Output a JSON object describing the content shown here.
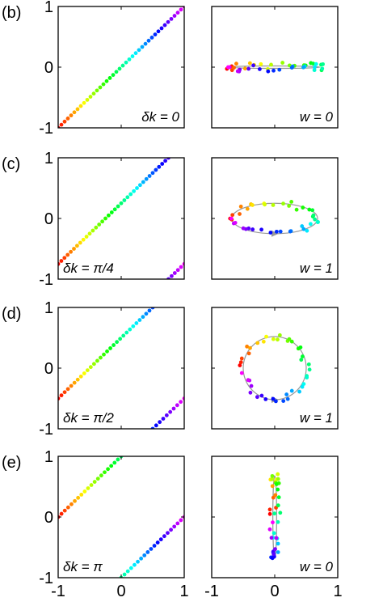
{
  "figure": {
    "rows": [
      {
        "label": "(b)"
      },
      {
        "label": "(c)"
      },
      {
        "label": "(d)"
      },
      {
        "label": "(e)"
      }
    ]
  },
  "chart_data": [
    {
      "type": "scatter",
      "panel_label": "(b)",
      "annotation": "δk = 0",
      "xlim": [
        -1,
        1
      ],
      "ylim": [
        -1,
        1
      ],
      "x_ticks": [
        "-1",
        "0",
        "1"
      ],
      "y_ticks": [
        "-1",
        "0",
        "1"
      ],
      "show_x_ticks": false,
      "show_y_ticks": true,
      "series": [
        {
          "x_start": -1,
          "y_start": -1,
          "x_end": 1,
          "y_end": 1,
          "points": 40
        }
      ]
    },
    {
      "type": "scatter",
      "panel_label": "(b)",
      "annotation": "w = 0",
      "xlim": [
        -1,
        1
      ],
      "ylim": [
        -1,
        1
      ],
      "x_ticks": [
        "-1",
        "0",
        "1"
      ],
      "y_ticks": [],
      "show_x_ticks": false,
      "show_y_ticks": false,
      "curve": {
        "kind": "ellipse",
        "cx": 0,
        "cy": 0,
        "rx": 0.72,
        "ry": 0.02
      },
      "points": 40
    },
    {
      "type": "scatter",
      "panel_label": "(c)",
      "annotation": "δk = π/4",
      "xlim": [
        -1,
        1
      ],
      "ylim": [
        -1,
        1
      ],
      "x_ticks": [
        "-1",
        "0",
        "1"
      ],
      "y_ticks": [
        "-1",
        "0",
        "1"
      ],
      "show_x_ticks": false,
      "show_y_ticks": true,
      "series": [
        {
          "x_start": -1,
          "y_start": -0.75,
          "x_end": 0.75,
          "y_end": 1,
          "points": 36
        },
        {
          "x_start": 0.75,
          "y_start": -1,
          "x_end": 1,
          "y_end": -0.75,
          "points": 6
        }
      ]
    },
    {
      "type": "scatter",
      "panel_label": "(c)",
      "annotation": "w = 1",
      "xlim": [
        -1,
        1
      ],
      "ylim": [
        -1,
        1
      ],
      "x_ticks": [
        "-1",
        "0",
        "1"
      ],
      "y_ticks": [],
      "show_x_ticks": false,
      "show_y_ticks": false,
      "curve": {
        "kind": "ellipse",
        "cx": 0,
        "cy": 0,
        "rx": 0.68,
        "ry": 0.25
      },
      "points": 40
    },
    {
      "type": "scatter",
      "panel_label": "(d)",
      "annotation": "δk = π/2",
      "xlim": [
        -1,
        1
      ],
      "ylim": [
        -1,
        1
      ],
      "x_ticks": [
        "-1",
        "0",
        "1"
      ],
      "y_ticks": [
        "-1",
        "0",
        "1"
      ],
      "show_x_ticks": false,
      "show_y_ticks": true,
      "series": [
        {
          "x_start": -1,
          "y_start": -0.5,
          "x_end": 0.5,
          "y_end": 1,
          "points": 30
        },
        {
          "x_start": 0.5,
          "y_start": -1,
          "x_end": 1,
          "y_end": -0.5,
          "points": 10
        }
      ]
    },
    {
      "type": "scatter",
      "panel_label": "(d)",
      "annotation": "w = 1",
      "xlim": [
        -1,
        1
      ],
      "ylim": [
        -1,
        1
      ],
      "x_ticks": [
        "-1",
        "0",
        "1"
      ],
      "y_ticks": [],
      "show_x_ticks": false,
      "show_y_ticks": false,
      "curve": {
        "kind": "ellipse",
        "cx": 0,
        "cy": 0,
        "rx": 0.5,
        "ry": 0.52
      },
      "points": 40
    },
    {
      "type": "scatter",
      "panel_label": "(e)",
      "annotation": "δk = π",
      "xlim": [
        -1,
        1
      ],
      "ylim": [
        -1,
        1
      ],
      "x_ticks": [
        "-1",
        "0",
        "1"
      ],
      "y_ticks": [
        "-1",
        "0",
        "1"
      ],
      "show_x_ticks": true,
      "show_y_ticks": true,
      "series": [
        {
          "x_start": -1,
          "y_start": 0,
          "x_end": 0,
          "y_end": 1,
          "points": 20
        },
        {
          "x_start": 0,
          "y_start": -1,
          "x_end": 1,
          "y_end": 0,
          "points": 20
        }
      ]
    },
    {
      "type": "scatter",
      "panel_label": "(e)",
      "annotation": "w = 0",
      "xlim": [
        -1,
        1
      ],
      "ylim": [
        -1,
        1
      ],
      "x_ticks": [
        "-1",
        "0",
        "1"
      ],
      "y_ticks": [],
      "show_x_ticks": true,
      "show_y_ticks": false,
      "curve": {
        "kind": "ellipse",
        "cx": 0,
        "cy": 0,
        "rx": 0.03,
        "ry": 0.68
      },
      "points": 40
    }
  ]
}
